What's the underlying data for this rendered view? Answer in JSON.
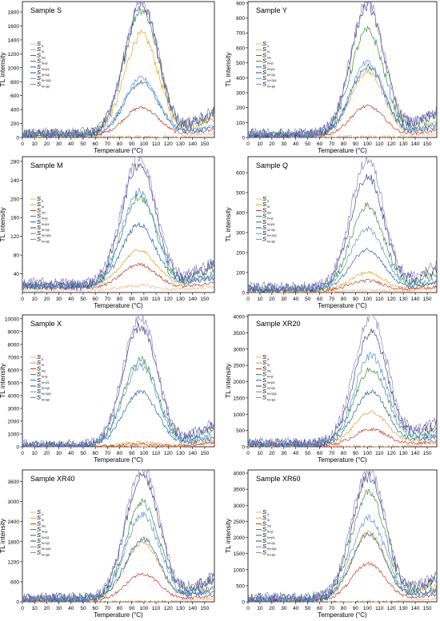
{
  "figure": {
    "panels": [
      {
        "sample_title": "Sample S",
        "ylabel": "TL intensity",
        "xlabel": "Temperature (°C)",
        "y_ticks": [
          0,
          200,
          400,
          600,
          800,
          1000,
          1200,
          1400,
          1600,
          1800
        ],
        "x_ticks": [
          0,
          10,
          20,
          30,
          40,
          50,
          60,
          70,
          80,
          90,
          100,
          110,
          120,
          130,
          140,
          150
        ]
      },
      {
        "sample_title": "Sample Y",
        "ylabel": "TL intensity",
        "xlabel": "Temperature (°C)",
        "y_ticks": [
          0,
          100,
          200,
          300,
          400,
          500,
          600,
          700,
          800,
          900
        ],
        "x_ticks": [
          0,
          10,
          20,
          30,
          40,
          50,
          60,
          70,
          80,
          90,
          100,
          110,
          120,
          130,
          140,
          150
        ]
      },
      {
        "sample_title": "Sample M",
        "ylabel": "TL intensity",
        "xlabel": "Temperature (°C)",
        "y_ticks": [
          40,
          80,
          120,
          160,
          200,
          240,
          280
        ],
        "x_ticks": [
          0,
          10,
          20,
          30,
          40,
          50,
          60,
          70,
          80,
          90,
          100,
          110,
          120,
          130,
          140,
          150
        ]
      },
      {
        "sample_title": "Sample Q",
        "ylabel": "TL intensity",
        "xlabel": "Temperature (°C)",
        "y_ticks": [
          0,
          100,
          200,
          300,
          400,
          500,
          600
        ],
        "x_ticks": [
          0,
          10,
          20,
          30,
          40,
          50,
          60,
          70,
          80,
          90,
          100,
          110,
          120,
          130,
          140,
          150
        ]
      },
      {
        "sample_title": "Sample X",
        "ylabel": "TL intensity",
        "xlabel": "Temperature (°C)",
        "y_ticks": [
          0,
          1000,
          2000,
          3000,
          4000,
          5000,
          6000,
          7000,
          8000,
          9000,
          10000
        ],
        "x_ticks": [
          0,
          10,
          20,
          30,
          40,
          50,
          60,
          70,
          80,
          90,
          100,
          110,
          120,
          130,
          140,
          150
        ]
      },
      {
        "sample_title": "Sample XR20",
        "ylabel": "TL intensity",
        "xlabel": "Temperature (°C)",
        "y_ticks": [
          0,
          500,
          1000,
          1500,
          2000,
          2500,
          3000,
          3500,
          4000
        ],
        "x_ticks": [
          0,
          10,
          20,
          30,
          40,
          50,
          60,
          70,
          80,
          90,
          100,
          110,
          120,
          130,
          140,
          150
        ]
      },
      {
        "sample_title": "Sample XR40",
        "ylabel": "TL intensity",
        "xlabel": "Temperature (°C)",
        "y_ticks": [
          0,
          600,
          1200,
          1800,
          2400,
          3000,
          3600
        ],
        "x_ticks": [
          0,
          10,
          20,
          30,
          40,
          50,
          60,
          70,
          80,
          90,
          100,
          110,
          120,
          130,
          140,
          150
        ]
      },
      {
        "sample_title": "Sample XR60",
        "ylabel": "TL intensity",
        "xlabel": "Temperature (°C)",
        "y_ticks": [
          0,
          500,
          1000,
          1500,
          2000,
          2500,
          3000,
          3500,
          4000
        ],
        "x_ticks": [
          0,
          10,
          20,
          30,
          40,
          50,
          60,
          70,
          80,
          90,
          100,
          110,
          120,
          130,
          140,
          150
        ]
      }
    ]
  },
  "legend_entries": [
    {
      "label": "S",
      "sub": "0",
      "color": "#f2b27a"
    },
    {
      "label": "S",
      "sub": "N",
      "color": "#e0a020"
    },
    {
      "label": "S",
      "sub": "N1",
      "color": "#c0301a"
    },
    {
      "label": "S",
      "sub": "N+β",
      "color": "#2e8b3a"
    },
    {
      "label": "S",
      "sub": "N+β1",
      "color": "#1f5fa8"
    },
    {
      "label": "S",
      "sub": "N+2β",
      "color": "#3c3c8a"
    },
    {
      "label": "S",
      "sub": "N+2β1",
      "color": "#4a90d9"
    },
    {
      "label": "S",
      "sub": "N+3β",
      "color": "#8a7fc0"
    }
  ],
  "chart_data": [
    {
      "type": "line",
      "title": "Sample S",
      "xlabel": "Temperature (°C)",
      "ylabel": "TL intensity",
      "xlim": [
        0,
        158
      ],
      "ylim": [
        0,
        1950
      ],
      "peak_x": 98,
      "series": [
        {
          "name": "S0",
          "peak": 0,
          "base": 10
        },
        {
          "name": "SN",
          "peak": 1450,
          "base": 30
        },
        {
          "name": "SN1",
          "peak": 400,
          "base": 30
        },
        {
          "name": "SN+β",
          "peak": 1800,
          "base": 40
        },
        {
          "name": "SN+β1",
          "peak": 750,
          "base": 40
        },
        {
          "name": "SN+2β",
          "peak": 1850,
          "base": 50
        },
        {
          "name": "SN+2β1",
          "peak": 800,
          "base": 50
        },
        {
          "name": "SN+3β",
          "peak": 1900,
          "base": 60
        }
      ]
    },
    {
      "type": "line",
      "title": "Sample Y",
      "xlabel": "Temperature (°C)",
      "ylabel": "TL intensity",
      "xlim": [
        0,
        158
      ],
      "ylim": [
        0,
        910
      ],
      "peak_x": 100,
      "series": [
        {
          "name": "S0",
          "peak": 0,
          "base": 5
        },
        {
          "name": "SN",
          "peak": 430,
          "base": 10
        },
        {
          "name": "SN1",
          "peak": 200,
          "base": 10
        },
        {
          "name": "SN+β",
          "peak": 700,
          "base": 15
        },
        {
          "name": "SN+β1",
          "peak": 460,
          "base": 15
        },
        {
          "name": "SN+2β",
          "peak": 860,
          "base": 20
        },
        {
          "name": "SN+2β1",
          "peak": 480,
          "base": 20
        },
        {
          "name": "SN+3β",
          "peak": 880,
          "base": 25
        }
      ]
    },
    {
      "type": "line",
      "title": "Sample M",
      "xlabel": "Temperature (°C)",
      "ylabel": "TL intensity",
      "xlim": [
        0,
        158
      ],
      "ylim": [
        0,
        290
      ],
      "peak_x": 96,
      "series": [
        {
          "name": "S0",
          "peak": 10,
          "base": 5
        },
        {
          "name": "SN",
          "peak": 75,
          "base": 15
        },
        {
          "name": "SN1",
          "peak": 50,
          "base": 10
        },
        {
          "name": "SN+β",
          "peak": 190,
          "base": 15
        },
        {
          "name": "SN+β1",
          "peak": 130,
          "base": 15
        },
        {
          "name": "SN+2β",
          "peak": 260,
          "base": 15
        },
        {
          "name": "SN+2β1",
          "peak": 200,
          "base": 15
        },
        {
          "name": "SN+3β",
          "peak": 270,
          "base": 20
        }
      ]
    },
    {
      "type": "line",
      "title": "Sample Q",
      "xlabel": "Temperature (°C)",
      "ylabel": "TL intensity",
      "xlim": [
        0,
        158
      ],
      "ylim": [
        0,
        680
      ],
      "peak_x": 100,
      "series": [
        {
          "name": "S0",
          "peak": 5,
          "base": 5
        },
        {
          "name": "SN",
          "peak": 90,
          "base": 10
        },
        {
          "name": "SN1",
          "peak": 50,
          "base": 10
        },
        {
          "name": "SN+β",
          "peak": 420,
          "base": 15
        },
        {
          "name": "SN+β1",
          "peak": 200,
          "base": 15
        },
        {
          "name": "SN+2β",
          "peak": 560,
          "base": 20
        },
        {
          "name": "SN+2β1",
          "peak": 300,
          "base": 20
        },
        {
          "name": "SN+3β",
          "peak": 640,
          "base": 25
        }
      ]
    },
    {
      "type": "line",
      "title": "Sample X",
      "xlabel": "Temperature (°C)",
      "ylabel": "TL intensity",
      "xlim": [
        0,
        158
      ],
      "ylim": [
        0,
        10300
      ],
      "peak_x": 97,
      "series": [
        {
          "name": "S0",
          "peak": 0,
          "base": 20
        },
        {
          "name": "SN",
          "peak": 300,
          "base": 50
        },
        {
          "name": "SN1",
          "peak": 150,
          "base": 50
        },
        {
          "name": "SN+β",
          "peak": 6700,
          "base": 100
        },
        {
          "name": "SN+β1",
          "peak": 4200,
          "base": 100
        },
        {
          "name": "SN+2β",
          "peak": 9300,
          "base": 100
        },
        {
          "name": "SN+2β1",
          "peak": 6200,
          "base": 100
        },
        {
          "name": "SN+3β",
          "peak": 10100,
          "base": 120
        }
      ]
    },
    {
      "type": "line",
      "title": "Sample XR20",
      "xlabel": "Temperature (°C)",
      "ylabel": "TL intensity",
      "xlim": [
        0,
        158
      ],
      "ylim": [
        0,
        4050
      ],
      "peak_x": 103,
      "series": [
        {
          "name": "S0",
          "peak": 0,
          "base": 10
        },
        {
          "name": "SN",
          "peak": 1000,
          "base": 60
        },
        {
          "name": "SN1",
          "peak": 500,
          "base": 40
        },
        {
          "name": "SN+β",
          "peak": 2300,
          "base": 80
        },
        {
          "name": "SN+β1",
          "peak": 1600,
          "base": 80
        },
        {
          "name": "SN+2β",
          "peak": 3400,
          "base": 100
        },
        {
          "name": "SN+2β1",
          "peak": 2700,
          "base": 100
        },
        {
          "name": "SN+3β",
          "peak": 3900,
          "base": 120
        }
      ]
    },
    {
      "type": "line",
      "title": "Sample XR40",
      "xlabel": "Temperature (°C)",
      "ylabel": "TL intensity",
      "xlim": [
        0,
        158
      ],
      "ylim": [
        0,
        3950
      ],
      "peak_x": 99,
      "series": [
        {
          "name": "S0",
          "peak": 0,
          "base": 10
        },
        {
          "name": "SN",
          "peak": 1700,
          "base": 60
        },
        {
          "name": "SN1",
          "peak": 800,
          "base": 40
        },
        {
          "name": "SN+β",
          "peak": 2900,
          "base": 80
        },
        {
          "name": "SN+β1",
          "peak": 1800,
          "base": 80
        },
        {
          "name": "SN+2β",
          "peak": 3700,
          "base": 100
        },
        {
          "name": "SN+2β1",
          "peak": 2500,
          "base": 100
        },
        {
          "name": "SN+3β",
          "peak": 3900,
          "base": 120
        }
      ]
    },
    {
      "type": "line",
      "title": "Sample XR60",
      "xlabel": "Temperature (°C)",
      "ylabel": "TL intensity",
      "xlim": [
        0,
        158
      ],
      "ylim": [
        0,
        4100
      ],
      "peak_x": 101,
      "series": [
        {
          "name": "S0",
          "peak": 0,
          "base": 10
        },
        {
          "name": "SN",
          "peak": 2100,
          "base": 60
        },
        {
          "name": "SN1",
          "peak": 1150,
          "base": 40
        },
        {
          "name": "SN+β",
          "peak": 3300,
          "base": 80
        },
        {
          "name": "SN+β1",
          "peak": 2000,
          "base": 80
        },
        {
          "name": "SN+2β",
          "peak": 3800,
          "base": 100
        },
        {
          "name": "SN+2β1",
          "peak": 2500,
          "base": 100
        },
        {
          "name": "SN+3β",
          "peak": 4000,
          "base": 120
        }
      ]
    }
  ]
}
